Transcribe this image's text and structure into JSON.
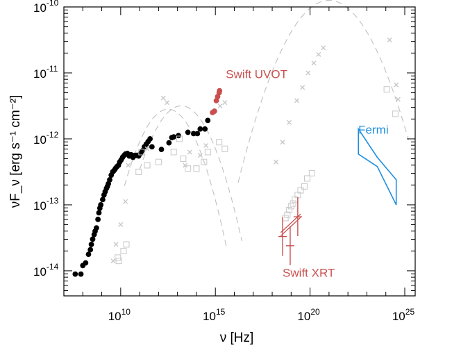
{
  "chart_data": {
    "type": "scatter",
    "title": "",
    "xlabel": "ν [Hz]",
    "ylabel": "νF_ν [erg s⁻¹ cm⁻²]",
    "x_scale": "log",
    "y_scale": "log",
    "xlim_log10": [
      7.0,
      25.55
    ],
    "ylim_log10": [
      -14.38,
      -10.0
    ],
    "x_ticks": [
      {
        "base": "10",
        "exp": "10",
        "log": 10
      },
      {
        "base": "10",
        "exp": "15",
        "log": 15
      },
      {
        "base": "10",
        "exp": "20",
        "log": 20
      },
      {
        "base": "10",
        "exp": "25",
        "log": 25
      }
    ],
    "y_ticks": [
      {
        "base": "10",
        "exp": "-10",
        "log": -10
      },
      {
        "base": "10",
        "exp": "-11",
        "log": -11
      },
      {
        "base": "10",
        "exp": "-12",
        "log": -12
      },
      {
        "base": "10",
        "exp": "-13",
        "log": -13
      },
      {
        "base": "10",
        "exp": "-14",
        "log": -14
      }
    ],
    "annotations": [
      {
        "text": "Swift UVOT",
        "color": "#c94f4f",
        "x_log": 15.55,
        "y_log": -11.08
      },
      {
        "text": "Swift XRT",
        "color": "#c94f4f",
        "x_log": 18.55,
        "y_log": -14.09
      },
      {
        "text": "Fermi",
        "color": "#1f8fe0",
        "x_log": 22.55,
        "y_log": -11.92
      }
    ],
    "series": [
      {
        "name": "radio-to-optical (black points)",
        "color": "#000000",
        "marker": "filled-circle",
        "points": [
          [
            7.6,
            -14.05
          ],
          [
            7.9,
            -14.05
          ],
          [
            8.0,
            -13.92
          ],
          [
            8.15,
            -13.88
          ],
          [
            8.3,
            -13.75
          ],
          [
            8.4,
            -13.68
          ],
          [
            8.45,
            -13.6
          ],
          [
            8.52,
            -13.52
          ],
          [
            8.6,
            -13.45
          ],
          [
            8.65,
            -13.4
          ],
          [
            8.72,
            -13.35
          ],
          [
            8.8,
            -13.22
          ],
          [
            8.85,
            -13.12
          ],
          [
            8.9,
            -13.05
          ],
          [
            8.95,
            -13.0
          ],
          [
            9.05,
            -12.92
          ],
          [
            9.12,
            -12.85
          ],
          [
            9.18,
            -12.8
          ],
          [
            9.25,
            -12.75
          ],
          [
            9.3,
            -12.72
          ],
          [
            9.35,
            -12.68
          ],
          [
            9.42,
            -12.62
          ],
          [
            9.5,
            -12.55
          ],
          [
            9.58,
            -12.5
          ],
          [
            9.65,
            -12.48
          ],
          [
            9.72,
            -12.45
          ],
          [
            9.8,
            -12.42
          ],
          [
            9.88,
            -12.4
          ],
          [
            9.95,
            -12.35
          ],
          [
            10.02,
            -12.32
          ],
          [
            10.1,
            -12.28
          ],
          [
            10.18,
            -12.25
          ],
          [
            10.25,
            -12.23
          ],
          [
            10.35,
            -12.22
          ],
          [
            10.45,
            -12.26
          ],
          [
            10.55,
            -12.24
          ],
          [
            10.65,
            -12.28
          ],
          [
            10.75,
            -12.25
          ],
          [
            10.85,
            -12.25
          ],
          [
            10.95,
            -12.26
          ],
          [
            11.05,
            -12.22
          ],
          [
            11.15,
            -12.18
          ],
          [
            11.25,
            -12.12
          ],
          [
            11.35,
            -12.08
          ],
          [
            11.45,
            -12.04
          ],
          [
            11.55,
            -12.0
          ],
          [
            11.65,
            -12.12
          ],
          [
            12.15,
            -12.16
          ],
          [
            12.55,
            -12.06
          ],
          [
            12.7,
            -11.98
          ],
          [
            12.8,
            -11.97
          ],
          [
            13.05,
            -11.95
          ],
          [
            13.55,
            -11.9
          ],
          [
            13.85,
            -11.92
          ],
          [
            14.05,
            -11.92
          ],
          [
            14.2,
            -11.85
          ],
          [
            14.45,
            -11.85
          ],
          [
            14.6,
            -11.72
          ]
        ]
      },
      {
        "name": "Swift UVOT",
        "color": "#c94f4f",
        "marker": "filled-circle",
        "points": [
          [
            14.85,
            -11.6
          ],
          [
            14.95,
            -11.58
          ],
          [
            15.05,
            -11.42
          ],
          [
            15.12,
            -11.36
          ],
          [
            15.2,
            -11.3
          ],
          [
            15.22,
            -11.27
          ]
        ]
      },
      {
        "name": "Fermi",
        "color": "#1f8fe0",
        "marker": "bowtie-outline",
        "points": [
          [
            22.55,
            -11.85
          ],
          [
            23.55,
            -12.28
          ],
          [
            24.55,
            -12.62
          ],
          [
            24.55,
            -13.0
          ],
          [
            23.55,
            -12.42
          ],
          [
            22.55,
            -12.23
          ]
        ]
      },
      {
        "name": "archival squares (grey)",
        "color": "#c8c8c8",
        "marker": "open-square",
        "points": [
          [
            9.85,
            -13.8
          ],
          [
            9.9,
            -13.85
          ],
          [
            10.15,
            -13.7
          ],
          [
            10.3,
            -13.6
          ],
          [
            10.95,
            -12.5
          ],
          [
            11.1,
            -12.2
          ],
          [
            11.4,
            -12.4
          ],
          [
            12.0,
            -12.35
          ],
          [
            12.8,
            -12.2
          ],
          [
            13.1,
            -12.0
          ],
          [
            13.3,
            -12.3
          ],
          [
            13.55,
            -12.45
          ],
          [
            14.0,
            -12.45
          ],
          [
            14.4,
            -12.35
          ],
          [
            14.6,
            -12.2
          ],
          [
            15.2,
            -12.05
          ],
          [
            15.5,
            -12.15
          ],
          [
            18.7,
            -13.2
          ],
          [
            18.8,
            -13.15
          ],
          [
            18.9,
            -13.08
          ],
          [
            19.0,
            -13.02
          ],
          [
            19.1,
            -12.98
          ],
          [
            19.2,
            -12.92
          ],
          [
            19.35,
            -12.85
          ],
          [
            19.5,
            -12.78
          ],
          [
            19.7,
            -12.72
          ],
          [
            19.85,
            -12.6
          ],
          [
            20.1,
            -12.52
          ],
          [
            24.05,
            -11.25
          ],
          [
            24.5,
            -11.62
          ]
        ]
      },
      {
        "name": "archival crosses (grey)",
        "color": "#c8c8c8",
        "marker": "x",
        "points": [
          [
            9.6,
            -13.85
          ],
          [
            9.75,
            -13.6
          ],
          [
            10.0,
            -13.3
          ],
          [
            10.25,
            -12.95
          ],
          [
            10.4,
            -12.4
          ],
          [
            11.4,
            -12.15
          ],
          [
            12.25,
            -11.38
          ],
          [
            12.45,
            -11.45
          ],
          [
            13.4,
            -12.4
          ],
          [
            13.65,
            -12.2
          ],
          [
            14.2,
            -12.25
          ],
          [
            14.5,
            -12.1
          ],
          [
            15.25,
            -11.5
          ],
          [
            15.5,
            -11.45
          ],
          [
            18.2,
            -12.35
          ],
          [
            18.55,
            -12.05
          ],
          [
            18.9,
            -11.75
          ],
          [
            19.3,
            -11.42
          ],
          [
            19.6,
            -11.22
          ],
          [
            19.9,
            -11.0
          ],
          [
            20.2,
            -10.85
          ],
          [
            20.45,
            -10.72
          ],
          [
            20.7,
            -10.62
          ],
          [
            24.2,
            -10.5
          ],
          [
            24.55,
            -11.18
          ],
          [
            24.65,
            -11.4
          ]
        ]
      },
      {
        "name": "Swift XRT",
        "color": "#c94f4f",
        "marker": "error-bars",
        "points": [
          [
            18.55,
            -13.48
          ],
          [
            18.95,
            -13.62
          ],
          [
            19.35,
            -13.18
          ]
        ]
      },
      {
        "name": "model curves (dashed grey)",
        "color": "#c0c0c0",
        "marker": "dashed-line",
        "points": []
      }
    ]
  }
}
